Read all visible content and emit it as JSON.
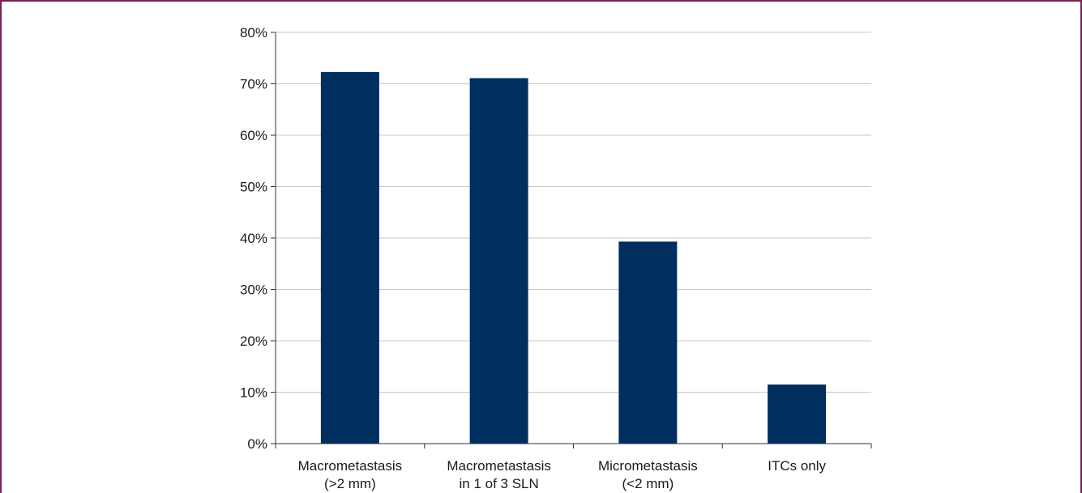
{
  "chart_data": {
    "type": "bar",
    "title": "",
    "xlabel": "",
    "ylabel": "",
    "categories": [
      [
        "Macrometastasis",
        "(>2 mm)"
      ],
      [
        "Macrometastasis",
        "in 1 of 3 SLN"
      ],
      [
        "Micrometastasis",
        "(<2 mm)"
      ],
      [
        "ITCs only"
      ]
    ],
    "values": [
      72.3,
      71.1,
      39.3,
      11.5
    ],
    "ylim": [
      0,
      80
    ],
    "yticks": [
      0,
      10,
      20,
      30,
      40,
      50,
      60,
      70,
      80
    ],
    "ytick_labels": [
      "0%",
      "10%",
      "20%",
      "30%",
      "40%",
      "50%",
      "60%",
      "70%",
      "80%"
    ],
    "grid": true,
    "legend": "none",
    "bar_color": "#002f5f",
    "grid_color": "#c8c8c8",
    "axis_color": "#333333"
  }
}
